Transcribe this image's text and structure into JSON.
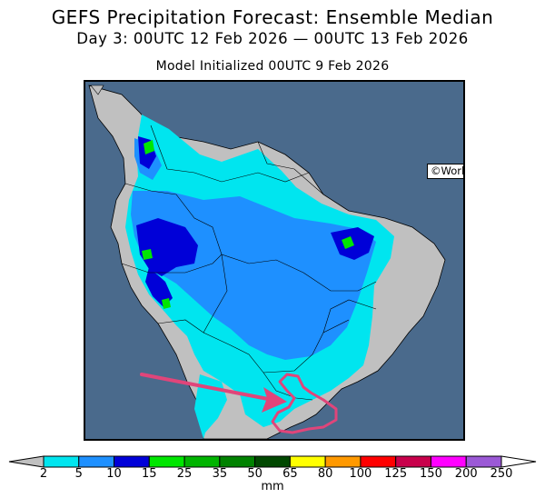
{
  "title": "GEFS Precipitation Forecast: Ensemble Median",
  "subtitle": "Day 3: 00UTC 12 Feb 2026 — 00UTC 13 Feb 2026",
  "initialized": "Model Initialized 00UTC 9 Feb 2026",
  "credit": "©World Ag Weather",
  "legend": {
    "unit": "mm",
    "ticks": [
      "2",
      "5",
      "10",
      "15",
      "25",
      "35",
      "50",
      "65",
      "80",
      "100",
      "125",
      "150",
      "200",
      "250"
    ],
    "colors": [
      "#00e5ef",
      "#1e90ff",
      "#0000d8",
      "#00e600",
      "#00b400",
      "#008200",
      "#004800",
      "#ffff00",
      "#ff9900",
      "#ff0000",
      "#c8004b",
      "#ff00ff",
      "#9b59d6"
    ]
  },
  "map": {
    "ocean_color": "#4a6a8c",
    "land_color": "#c0c0c0"
  },
  "annotation": {
    "type": "arrow-and-circle",
    "color": "#e0457a"
  }
}
